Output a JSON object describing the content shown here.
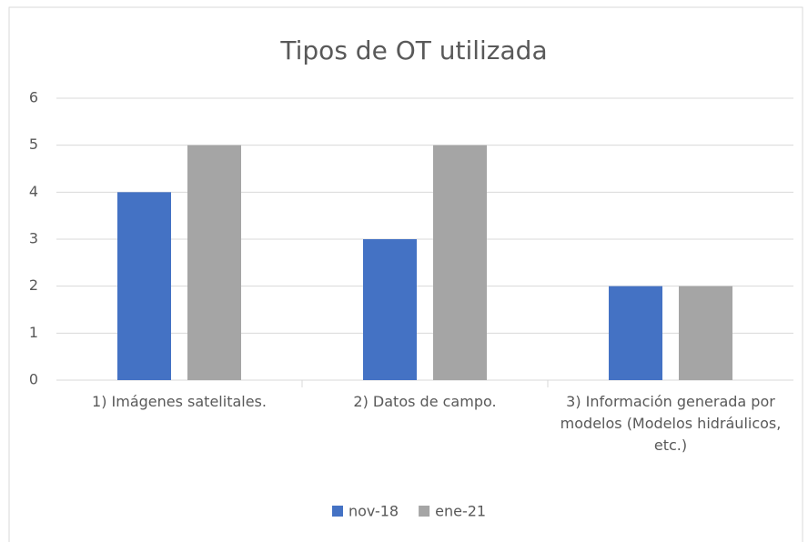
{
  "chart_data": {
    "type": "bar",
    "title": "Tipos de OT utilizada",
    "categories": [
      "1) Imágenes satelitales.",
      "2) Datos de campo.",
      "3) Información generada por modelos (Modelos hidráulicos, etc.)"
    ],
    "series": [
      {
        "name": "nov-18",
        "color": "#4472c4",
        "values": [
          4,
          3,
          2
        ]
      },
      {
        "name": "ene-21",
        "color": "#a5a5a5",
        "values": [
          5,
          5,
          2
        ]
      }
    ],
    "ylim": [
      0,
      6
    ],
    "yticks": [
      0,
      1,
      2,
      3,
      4,
      5,
      6
    ],
    "grid": true,
    "legend": "bottom"
  }
}
